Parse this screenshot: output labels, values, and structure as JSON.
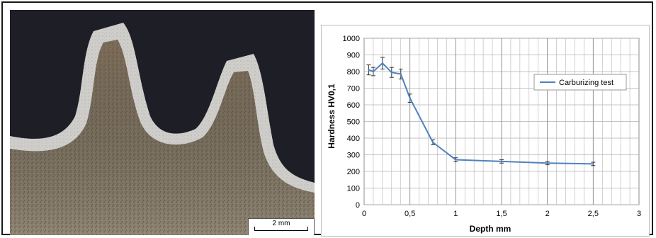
{
  "figure": {
    "scale_bar_label": "2 mm"
  },
  "colors": {
    "series": "#4f81bd",
    "grid": "#b3b3b3",
    "micrograph_background": "#1d1e26",
    "micrograph_case": "#c9c8c4",
    "micrograph_core": "#8a7f6d"
  },
  "chart_data": {
    "type": "line",
    "title": "",
    "xlabel": "Depth mm",
    "ylabel": "Hardness HV0,1",
    "xlim": [
      0,
      3
    ],
    "ylim": [
      0,
      1000
    ],
    "x_ticks": [
      "0",
      "0,5",
      "1",
      "1,5",
      "2",
      "2,5",
      "3"
    ],
    "x_tick_values": [
      0,
      0.5,
      1,
      1.5,
      2,
      2.5,
      3
    ],
    "y_ticks": [
      "0",
      "100",
      "200",
      "300",
      "400",
      "500",
      "600",
      "700",
      "800",
      "900",
      "1000"
    ],
    "y_tick_values": [
      0,
      100,
      200,
      300,
      400,
      500,
      600,
      700,
      800,
      900,
      1000
    ],
    "grid": true,
    "minor_x_gridlines_per_major": 5,
    "legend_position": "top-right",
    "series": [
      {
        "name": "Carburizing test",
        "x": [
          0.05,
          0.1,
          0.2,
          0.3,
          0.4,
          0.5,
          0.75,
          1.0,
          1.5,
          2.0,
          2.5
        ],
        "y": [
          810,
          800,
          850,
          795,
          785,
          640,
          375,
          270,
          260,
          250,
          245
        ],
        "error": [
          30,
          25,
          35,
          30,
          30,
          25,
          15,
          12,
          10,
          10,
          10
        ]
      }
    ]
  }
}
